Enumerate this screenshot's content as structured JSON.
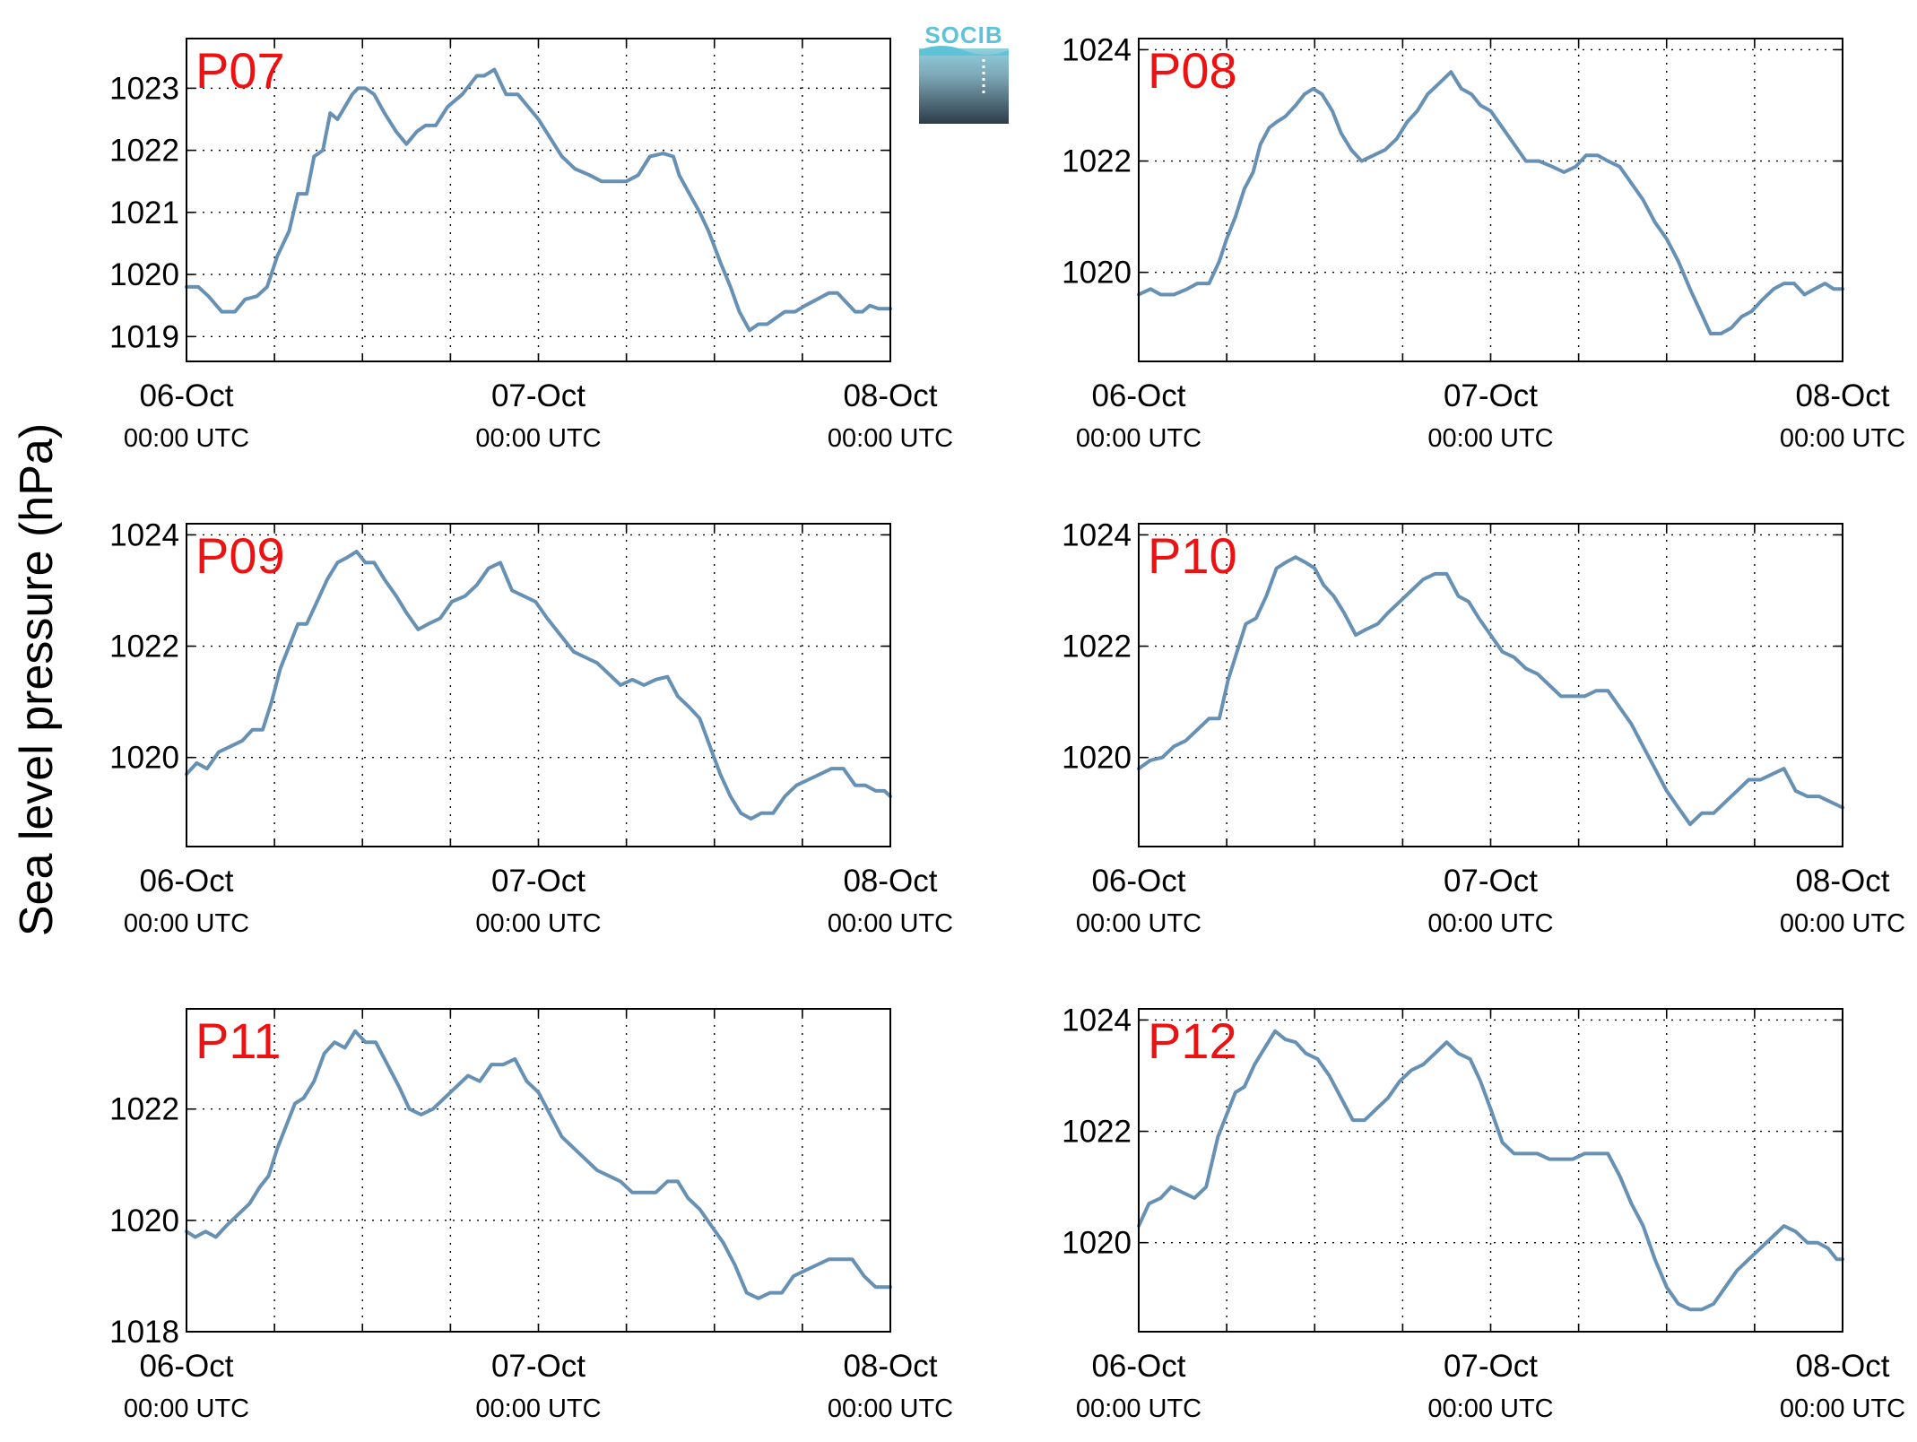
{
  "figure": {
    "ylabel": "Sea level pressure (hPa)",
    "logo_text": "SOCIB",
    "line_color": "#6690B4",
    "label_color": "#EE1111"
  },
  "chart_data": [
    {
      "type": "line",
      "name": "P07",
      "xlim": [
        0,
        48
      ],
      "ylim": [
        1018.6,
        1023.8
      ],
      "yticks": [
        1019,
        1020,
        1021,
        1022,
        1023
      ],
      "xticks": [
        {
          "value": 0,
          "date": "06-Oct",
          "time": "00:00 UTC"
        },
        {
          "value": 24,
          "date": "07-Oct",
          "time": "00:00 UTC"
        },
        {
          "value": 48,
          "date": "08-Oct",
          "time": "00:00 UTC"
        }
      ],
      "x": [
        0,
        0.8,
        1.5,
        2.4,
        3.3,
        4,
        4.8,
        5.5,
        6.2,
        7,
        7.6,
        8.2,
        8.7,
        9.3,
        9.8,
        10.3,
        10.8,
        11.3,
        11.7,
        12.2,
        12.8,
        13.5,
        14.3,
        15,
        15.7,
        16.3,
        17,
        17.8,
        18.8,
        19.8,
        20.3,
        21,
        21.8,
        22.6,
        23.3,
        24,
        24.8,
        25.6,
        26.5,
        27.5,
        28.3,
        29,
        30,
        30.8,
        31.6,
        32.5,
        33.2,
        33.6,
        34.3,
        35,
        35.6,
        36.4,
        37.1,
        37.7,
        38.4,
        39,
        39.6,
        40.2,
        40.8,
        41.5,
        42.2,
        43,
        43.8,
        44.4,
        45,
        45.6,
        46.1,
        46.6,
        47.2,
        48
      ],
      "y": [
        1019.8,
        1019.8,
        1019.65,
        1019.4,
        1019.4,
        1019.6,
        1019.65,
        1019.8,
        1020.3,
        1020.7,
        1021.3,
        1021.3,
        1021.9,
        1022.0,
        1022.6,
        1022.5,
        1022.7,
        1022.9,
        1023.0,
        1023.0,
        1022.9,
        1022.6,
        1022.3,
        1022.1,
        1022.3,
        1022.4,
        1022.4,
        1022.7,
        1022.9,
        1023.2,
        1023.2,
        1023.3,
        1022.9,
        1022.9,
        1022.7,
        1022.5,
        1022.2,
        1021.9,
        1021.7,
        1021.6,
        1021.5,
        1021.5,
        1021.5,
        1021.6,
        1021.9,
        1021.95,
        1021.9,
        1021.6,
        1021.3,
        1021.0,
        1020.7,
        1020.2,
        1019.8,
        1019.4,
        1019.1,
        1019.2,
        1019.2,
        1019.3,
        1019.4,
        1019.4,
        1019.5,
        1019.6,
        1019.7,
        1019.7,
        1019.55,
        1019.4,
        1019.4,
        1019.5,
        1019.45,
        1019.45
      ]
    },
    {
      "type": "line",
      "name": "P08",
      "xlim": [
        0,
        48
      ],
      "ylim": [
        1018.4,
        1024.2
      ],
      "yticks": [
        1020,
        1022,
        1024
      ],
      "xticks": [
        {
          "value": 0,
          "date": "06-Oct",
          "time": "00:00 UTC"
        },
        {
          "value": 24,
          "date": "07-Oct",
          "time": "00:00 UTC"
        },
        {
          "value": 48,
          "date": "08-Oct",
          "time": "00:00 UTC"
        }
      ],
      "x": [
        0,
        0.8,
        1.5,
        2.4,
        3.3,
        4,
        4.8,
        5.5,
        6,
        6.6,
        7.2,
        7.8,
        8.3,
        8.9,
        9.4,
        10,
        10.7,
        11.3,
        11.9,
        12.5,
        13.2,
        13.8,
        14.5,
        15.2,
        16,
        16.8,
        17.6,
        18.3,
        19,
        19.7,
        20.5,
        21.3,
        22,
        22.7,
        23.3,
        24,
        24.8,
        25.6,
        26.4,
        27.3,
        28.2,
        29,
        29.8,
        30.5,
        31.3,
        32,
        32.8,
        33.6,
        34.4,
        35.2,
        36,
        36.8,
        37.6,
        38.3,
        39,
        39.7,
        40.4,
        41.1,
        41.8,
        42.5,
        43.3,
        44,
        44.7,
        45.4,
        46.1,
        46.8,
        47.4,
        48
      ],
      "y": [
        1019.6,
        1019.7,
        1019.6,
        1019.6,
        1019.7,
        1019.8,
        1019.8,
        1020.2,
        1020.6,
        1021.0,
        1021.5,
        1021.8,
        1022.3,
        1022.6,
        1022.7,
        1022.8,
        1023.0,
        1023.2,
        1023.3,
        1023.2,
        1022.9,
        1022.5,
        1022.2,
        1022.0,
        1022.1,
        1022.2,
        1022.4,
        1022.7,
        1022.9,
        1023.2,
        1023.4,
        1023.6,
        1023.3,
        1023.2,
        1023.0,
        1022.9,
        1022.6,
        1022.3,
        1022.0,
        1022.0,
        1021.9,
        1021.8,
        1021.9,
        1022.1,
        1022.1,
        1022.0,
        1021.9,
        1021.6,
        1021.3,
        1020.9,
        1020.6,
        1020.2,
        1019.7,
        1019.3,
        1018.9,
        1018.9,
        1019.0,
        1019.2,
        1019.3,
        1019.5,
        1019.7,
        1019.8,
        1019.8,
        1019.6,
        1019.7,
        1019.8,
        1019.7,
        1019.7
      ]
    },
    {
      "type": "line",
      "name": "P09",
      "xlim": [
        0,
        48
      ],
      "ylim": [
        1018.4,
        1024.2
      ],
      "yticks": [
        1020,
        1022,
        1024
      ],
      "xticks": [
        {
          "value": 0,
          "date": "06-Oct",
          "time": "00:00 UTC"
        },
        {
          "value": 24,
          "date": "07-Oct",
          "time": "00:00 UTC"
        },
        {
          "value": 48,
          "date": "08-Oct",
          "time": "00:00 UTC"
        }
      ],
      "x": [
        0,
        0.7,
        1.4,
        2.2,
        3,
        3.8,
        4.5,
        5.2,
        5.8,
        6.4,
        7,
        7.6,
        8.2,
        8.9,
        9.6,
        10.3,
        11,
        11.6,
        12.2,
        12.8,
        13.5,
        14.3,
        15,
        15.8,
        16.5,
        17.3,
        18.1,
        19,
        19.8,
        20.6,
        21.4,
        22.2,
        23,
        23.8,
        24.6,
        25.5,
        26.4,
        27.2,
        28,
        28.8,
        29.6,
        30.4,
        31.2,
        32,
        32.8,
        33.5,
        34.3,
        35,
        35.7,
        36.4,
        37.1,
        37.8,
        38.5,
        39.2,
        40,
        40.8,
        41.6,
        42.4,
        43.2,
        44,
        44.8,
        45.6,
        46.3,
        47,
        47.6,
        48
      ],
      "y": [
        1019.7,
        1019.9,
        1019.8,
        1020.1,
        1020.2,
        1020.3,
        1020.5,
        1020.5,
        1021.0,
        1021.6,
        1022.0,
        1022.4,
        1022.4,
        1022.8,
        1023.2,
        1023.5,
        1023.6,
        1023.7,
        1023.5,
        1023.5,
        1023.2,
        1022.9,
        1022.6,
        1022.3,
        1022.4,
        1022.5,
        1022.8,
        1022.9,
        1023.1,
        1023.4,
        1023.5,
        1023.0,
        1022.9,
        1022.8,
        1022.5,
        1022.2,
        1021.9,
        1021.8,
        1021.7,
        1021.5,
        1021.3,
        1021.4,
        1021.3,
        1021.4,
        1021.45,
        1021.1,
        1020.9,
        1020.7,
        1020.2,
        1019.7,
        1019.3,
        1019.0,
        1018.9,
        1019.0,
        1019.0,
        1019.3,
        1019.5,
        1019.6,
        1019.7,
        1019.8,
        1019.8,
        1019.5,
        1019.5,
        1019.4,
        1019.4,
        1019.3
      ]
    },
    {
      "type": "line",
      "name": "P10",
      "xlim": [
        0,
        48
      ],
      "ylim": [
        1018.4,
        1024.2
      ],
      "yticks": [
        1020,
        1022,
        1024
      ],
      "xticks": [
        {
          "value": 0,
          "date": "06-Oct",
          "time": "00:00 UTC"
        },
        {
          "value": 24,
          "date": "07-Oct",
          "time": "00:00 UTC"
        },
        {
          "value": 48,
          "date": "08-Oct",
          "time": "00:00 UTC"
        }
      ],
      "x": [
        0,
        0.8,
        1.6,
        2.4,
        3.2,
        4,
        4.8,
        5.5,
        6.1,
        6.7,
        7.3,
        8,
        8.7,
        9.4,
        10,
        10.7,
        11.4,
        12,
        12.6,
        13.3,
        14,
        14.8,
        15.5,
        16.3,
        17,
        17.8,
        18.6,
        19.4,
        20.2,
        21,
        21.8,
        22.5,
        23.2,
        24,
        24.8,
        25.6,
        26.4,
        27.2,
        28,
        28.8,
        29.6,
        30.4,
        31.2,
        32,
        32.8,
        33.6,
        34.4,
        35.2,
        36,
        36.8,
        37.6,
        38.4,
        39.2,
        40,
        40.8,
        41.6,
        42.4,
        43.2,
        44,
        44.8,
        45.6,
        46.4,
        47.2,
        48
      ],
      "y": [
        1019.8,
        1019.95,
        1020.0,
        1020.2,
        1020.3,
        1020.5,
        1020.7,
        1020.7,
        1021.4,
        1021.9,
        1022.4,
        1022.5,
        1022.9,
        1023.4,
        1023.5,
        1023.6,
        1023.5,
        1023.4,
        1023.1,
        1022.9,
        1022.6,
        1022.2,
        1022.3,
        1022.4,
        1022.6,
        1022.8,
        1023.0,
        1023.2,
        1023.3,
        1023.3,
        1022.9,
        1022.8,
        1022.5,
        1022.2,
        1021.9,
        1021.8,
        1021.6,
        1021.5,
        1021.3,
        1021.1,
        1021.1,
        1021.1,
        1021.2,
        1021.2,
        1020.9,
        1020.6,
        1020.2,
        1019.8,
        1019.4,
        1019.1,
        1018.8,
        1019.0,
        1019.0,
        1019.2,
        1019.4,
        1019.6,
        1019.6,
        1019.7,
        1019.8,
        1019.4,
        1019.3,
        1019.3,
        1019.2,
        1019.1
      ]
    },
    {
      "type": "line",
      "name": "P11",
      "xlim": [
        0,
        48
      ],
      "ylim": [
        1018,
        1023.8
      ],
      "yticks": [
        1018,
        1020,
        1022
      ],
      "xticks": [
        {
          "value": 0,
          "date": "06-Oct",
          "time": "00:00 UTC"
        },
        {
          "value": 24,
          "date": "07-Oct",
          "time": "00:00 UTC"
        },
        {
          "value": 48,
          "date": "08-Oct",
          "time": "00:00 UTC"
        }
      ],
      "x": [
        0,
        0.6,
        1.3,
        2,
        2.7,
        3.5,
        4.3,
        5,
        5.6,
        6.2,
        6.8,
        7.4,
        8,
        8.7,
        9.4,
        10.1,
        10.8,
        11.5,
        12.2,
        12.9,
        13.7,
        14.5,
        15.2,
        16,
        16.8,
        17.6,
        18.4,
        19.2,
        20,
        20.8,
        21.6,
        22.4,
        23.2,
        24,
        24.8,
        25.6,
        26.4,
        27.2,
        28,
        28.8,
        29.6,
        30.4,
        31.2,
        32,
        32.8,
        33.5,
        34.2,
        35,
        35.8,
        36.6,
        37.4,
        38.2,
        39,
        39.8,
        40.6,
        41.4,
        42.2,
        43,
        43.8,
        44.6,
        45.4,
        46.2,
        47,
        48
      ],
      "y": [
        1019.8,
        1019.7,
        1019.8,
        1019.7,
        1019.9,
        1020.1,
        1020.3,
        1020.6,
        1020.8,
        1021.3,
        1021.7,
        1022.1,
        1022.2,
        1022.5,
        1023.0,
        1023.2,
        1023.1,
        1023.4,
        1023.2,
        1023.2,
        1022.8,
        1022.4,
        1022.0,
        1021.9,
        1022.0,
        1022.2,
        1022.4,
        1022.6,
        1022.5,
        1022.8,
        1022.8,
        1022.9,
        1022.5,
        1022.3,
        1021.9,
        1021.5,
        1021.3,
        1021.1,
        1020.9,
        1020.8,
        1020.7,
        1020.5,
        1020.5,
        1020.5,
        1020.7,
        1020.7,
        1020.4,
        1020.2,
        1019.9,
        1019.6,
        1019.2,
        1018.7,
        1018.6,
        1018.7,
        1018.7,
        1019.0,
        1019.1,
        1019.2,
        1019.3,
        1019.3,
        1019.3,
        1019.0,
        1018.8,
        1018.8
      ]
    },
    {
      "type": "line",
      "name": "P12",
      "xlim": [
        0,
        48
      ],
      "ylim": [
        1018.4,
        1024.2
      ],
      "yticks": [
        1020,
        1022,
        1024
      ],
      "xticks": [
        {
          "value": 0,
          "date": "06-Oct",
          "time": "00:00 UTC"
        },
        {
          "value": 24,
          "date": "07-Oct",
          "time": "00:00 UTC"
        },
        {
          "value": 48,
          "date": "08-Oct",
          "time": "00:00 UTC"
        }
      ],
      "x": [
        0,
        0.7,
        1.5,
        2.2,
        3,
        3.8,
        4.6,
        5.4,
        6,
        6.6,
        7.2,
        7.9,
        8.6,
        9.3,
        10,
        10.7,
        11.4,
        12.2,
        13,
        13.8,
        14.6,
        15.4,
        16.2,
        17,
        17.8,
        18.6,
        19.4,
        20.2,
        21,
        21.8,
        22.6,
        23.3,
        24,
        24.8,
        25.6,
        26.4,
        27.2,
        28,
        28.8,
        29.6,
        30.4,
        31.2,
        32,
        32.8,
        33.6,
        34.4,
        35.2,
        36,
        36.8,
        37.6,
        38.4,
        39.2,
        40,
        40.8,
        41.6,
        42.4,
        43.2,
        44,
        44.8,
        45.6,
        46.3,
        47,
        47.6,
        48
      ],
      "y": [
        1020.3,
        1020.7,
        1020.8,
        1021.0,
        1020.9,
        1020.8,
        1021.0,
        1021.9,
        1022.3,
        1022.7,
        1022.8,
        1023.2,
        1023.5,
        1023.8,
        1023.65,
        1023.6,
        1023.4,
        1023.3,
        1023.0,
        1022.6,
        1022.2,
        1022.2,
        1022.4,
        1022.6,
        1022.9,
        1023.1,
        1023.2,
        1023.4,
        1023.6,
        1023.4,
        1023.3,
        1022.9,
        1022.4,
        1021.8,
        1021.6,
        1021.6,
        1021.6,
        1021.5,
        1021.5,
        1021.5,
        1021.6,
        1021.6,
        1021.6,
        1021.2,
        1020.7,
        1020.3,
        1019.7,
        1019.2,
        1018.9,
        1018.8,
        1018.8,
        1018.9,
        1019.2,
        1019.5,
        1019.7,
        1019.9,
        1020.1,
        1020.3,
        1020.2,
        1020.0,
        1020.0,
        1019.9,
        1019.7,
        1019.7
      ]
    }
  ]
}
